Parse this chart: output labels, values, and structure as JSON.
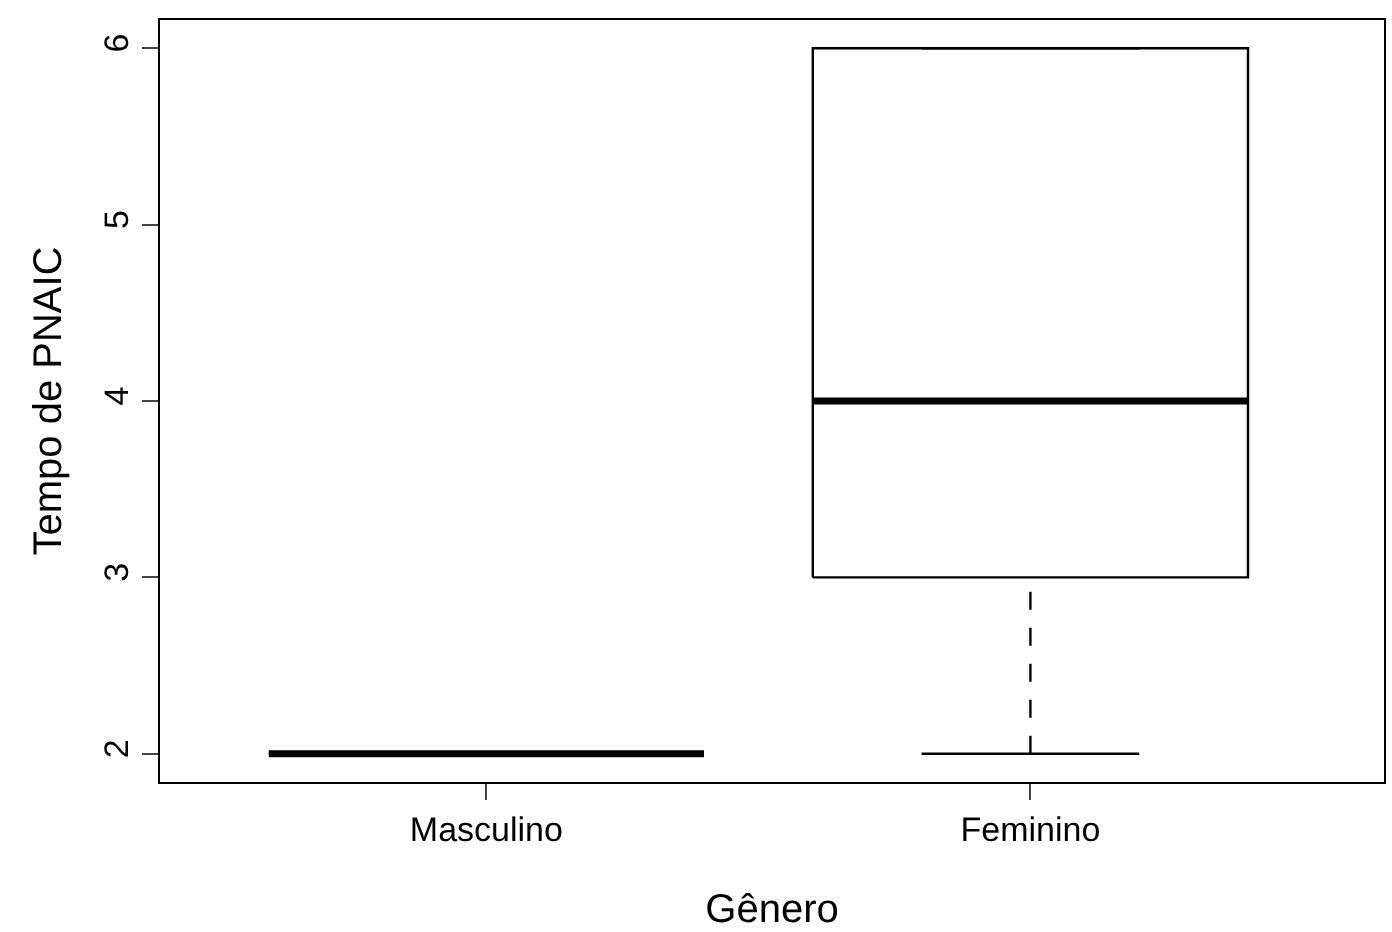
{
  "chart_data": {
    "type": "box",
    "xlabel": "Gênero",
    "ylabel": "Tempo de PNAIC",
    "categories": [
      "Masculino",
      "Feminino"
    ],
    "boxes": [
      {
        "low": 2,
        "q1": 2,
        "median": 2,
        "q3": 2,
        "high": 2
      },
      {
        "low": 2,
        "q1": 3,
        "median": 4,
        "q3": 6,
        "high": 6
      }
    ],
    "ylim": [
      1.84,
      6.16
    ],
    "yticks": [
      2,
      3,
      4,
      5,
      6
    ]
  }
}
